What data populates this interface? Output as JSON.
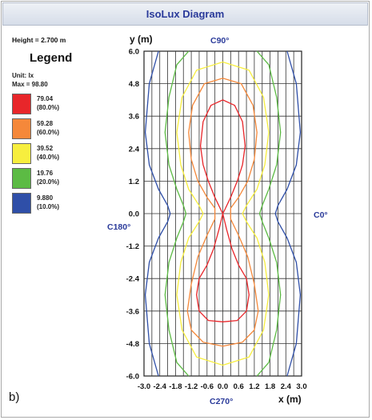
{
  "window": {
    "title": "IsoLux Diagram"
  },
  "panel_label": "b)",
  "info": {
    "height": "Height = 2.700 m",
    "legend_title": "Legend",
    "unit": "Unit: lx",
    "max": "Max = 98.80"
  },
  "legend": [
    {
      "value": "79.04",
      "percent": "(80.0%)",
      "color": "#e8262a"
    },
    {
      "value": "59.28",
      "percent": "(60.0%)",
      "color": "#f5883a"
    },
    {
      "value": "39.52",
      "percent": "(40.0%)",
      "color": "#f7ee3e"
    },
    {
      "value": "19.76",
      "percent": "(20.0%)",
      "color": "#5cbb44"
    },
    {
      "value": "9.880",
      "percent": "(10.0%)",
      "color": "#2f4fa8"
    }
  ],
  "chart_data": {
    "type": "contour",
    "xlabel": "x (m)",
    "ylabel": "y (m)",
    "xlim": [
      -3.0,
      3.0
    ],
    "ylim": [
      -6.0,
      6.0
    ],
    "grid": true,
    "x_ticks": [
      "-3.0",
      "-2.4",
      "-1.8",
      "-1.2",
      "-0.6",
      "0.0",
      "0.6",
      "1.2",
      "1.8",
      "2.4",
      "3.0"
    ],
    "y_ticks": [
      "6.0",
      "4.8",
      "3.6",
      "2.4",
      "1.2",
      "0.0",
      "-1.2",
      "-2.4",
      "-3.6",
      "-4.8",
      "-6.0"
    ],
    "grid_x_step": 0.3,
    "grid_y_step": 1.2,
    "direction_labels": {
      "top": "C90°",
      "bottom": "C270°",
      "left": "C180°",
      "right": "C0°"
    },
    "series": [
      {
        "name": "79.04",
        "color": "#e8262a",
        "x": [
          0.0,
          0.45,
          0.75,
          0.85,
          0.75,
          0.55,
          0.3,
          0.08,
          0.0,
          0.15,
          0.35,
          0.6,
          0.9,
          1.0,
          0.9,
          0.55,
          0.0,
          -0.55,
          -0.9,
          -1.0,
          -0.9,
          -0.6,
          -0.35,
          -0.15,
          0.0,
          -0.08,
          -0.3,
          -0.55,
          -0.75,
          -0.85,
          -0.75,
          -0.45,
          0.0
        ],
        "y": [
          4.2,
          4.0,
          3.4,
          2.5,
          1.8,
          1.2,
          0.6,
          0.15,
          0.0,
          -0.6,
          -1.3,
          -1.9,
          -2.4,
          -3.0,
          -3.6,
          -3.95,
          -4.0,
          -3.95,
          -3.6,
          -3.0,
          -2.4,
          -1.9,
          -1.3,
          -0.6,
          0.0,
          0.15,
          0.6,
          1.2,
          1.8,
          2.5,
          3.4,
          4.0,
          4.2
        ]
      },
      {
        "name": "59.28",
        "color": "#f5883a",
        "x": [
          0.0,
          0.7,
          1.15,
          1.3,
          1.2,
          0.95,
          0.6,
          0.3,
          0.3,
          0.6,
          0.95,
          1.2,
          1.35,
          1.2,
          0.75,
          0.0,
          -0.75,
          -1.2,
          -1.35,
          -1.2,
          -0.95,
          -0.6,
          -0.3,
          -0.3,
          -0.6,
          -0.95,
          -1.2,
          -1.3,
          -1.15,
          -0.7,
          0.0
        ],
        "y": [
          5.0,
          4.8,
          4.0,
          3.0,
          2.0,
          1.2,
          0.6,
          0.2,
          -0.2,
          -0.8,
          -1.6,
          -2.6,
          -3.6,
          -4.3,
          -4.75,
          -4.9,
          -4.75,
          -4.3,
          -3.6,
          -2.6,
          -1.6,
          -0.8,
          -0.2,
          0.2,
          0.6,
          1.2,
          2.0,
          3.0,
          4.0,
          4.8,
          5.0
        ]
      },
      {
        "name": "39.52",
        "color": "#f7ee3e",
        "x": [
          0.0,
          1.0,
          1.55,
          1.75,
          1.6,
          1.3,
          0.9,
          0.75,
          0.9,
          1.3,
          1.6,
          1.75,
          1.55,
          1.0,
          0.0,
          -1.0,
          -1.55,
          -1.75,
          -1.6,
          -1.3,
          -0.9,
          -0.75,
          -0.9,
          -1.3,
          -1.6,
          -1.75,
          -1.55,
          -1.0,
          0.0
        ],
        "y": [
          5.6,
          5.3,
          4.3,
          3.0,
          1.8,
          0.9,
          0.3,
          0.0,
          -0.3,
          -0.9,
          -1.8,
          -3.0,
          -4.3,
          -5.3,
          -5.6,
          -5.3,
          -4.3,
          -3.0,
          -1.8,
          -0.9,
          -0.3,
          0.0,
          0.3,
          0.9,
          1.8,
          3.0,
          4.3,
          5.3,
          5.6
        ]
      },
      {
        "name": "19.76",
        "color": "#5cbb44",
        "x": [
          -1.3,
          -1.75,
          -2.05,
          -2.2,
          -2.05,
          -1.75,
          -1.5,
          -1.4,
          -1.5,
          -1.75,
          -2.05,
          -2.2,
          -2.05,
          -1.75,
          -1.3
        ],
        "y": [
          6.0,
          5.5,
          4.3,
          3.0,
          1.8,
          0.9,
          0.3,
          0.0,
          -0.3,
          -0.9,
          -1.8,
          -3.0,
          -4.3,
          -5.5,
          -6.0
        ]
      },
      {
        "name": "19.76",
        "color": "#5cbb44",
        "x": [
          1.3,
          1.75,
          2.05,
          2.2,
          2.05,
          1.75,
          1.5,
          1.4,
          1.5,
          1.75,
          2.05,
          2.2,
          2.05,
          1.75,
          1.3
        ],
        "y": [
          6.0,
          5.5,
          4.3,
          3.0,
          1.8,
          0.9,
          0.3,
          0.0,
          -0.3,
          -0.9,
          -1.8,
          -3.0,
          -4.3,
          -5.5,
          -6.0
        ]
      },
      {
        "name": "9.880",
        "color": "#2f4fa8",
        "x": [
          -2.45,
          -2.8,
          -2.95,
          -2.8,
          -2.45,
          -2.1,
          -2.0,
          -2.1,
          -2.45,
          -2.8,
          -2.95,
          -2.8,
          -2.45
        ],
        "y": [
          6.0,
          4.8,
          3.0,
          1.8,
          0.9,
          0.3,
          0.0,
          -0.3,
          -0.9,
          -1.8,
          -3.0,
          -4.8,
          -6.0
        ]
      },
      {
        "name": "9.880",
        "color": "#2f4fa8",
        "x": [
          2.45,
          2.8,
          2.95,
          2.8,
          2.45,
          2.1,
          2.0,
          2.1,
          2.45,
          2.8,
          2.95,
          2.8,
          2.45
        ],
        "y": [
          6.0,
          4.8,
          3.0,
          1.8,
          0.9,
          0.3,
          0.0,
          -0.3,
          -0.9,
          -1.8,
          -3.0,
          -4.8,
          -6.0
        ]
      }
    ]
  }
}
